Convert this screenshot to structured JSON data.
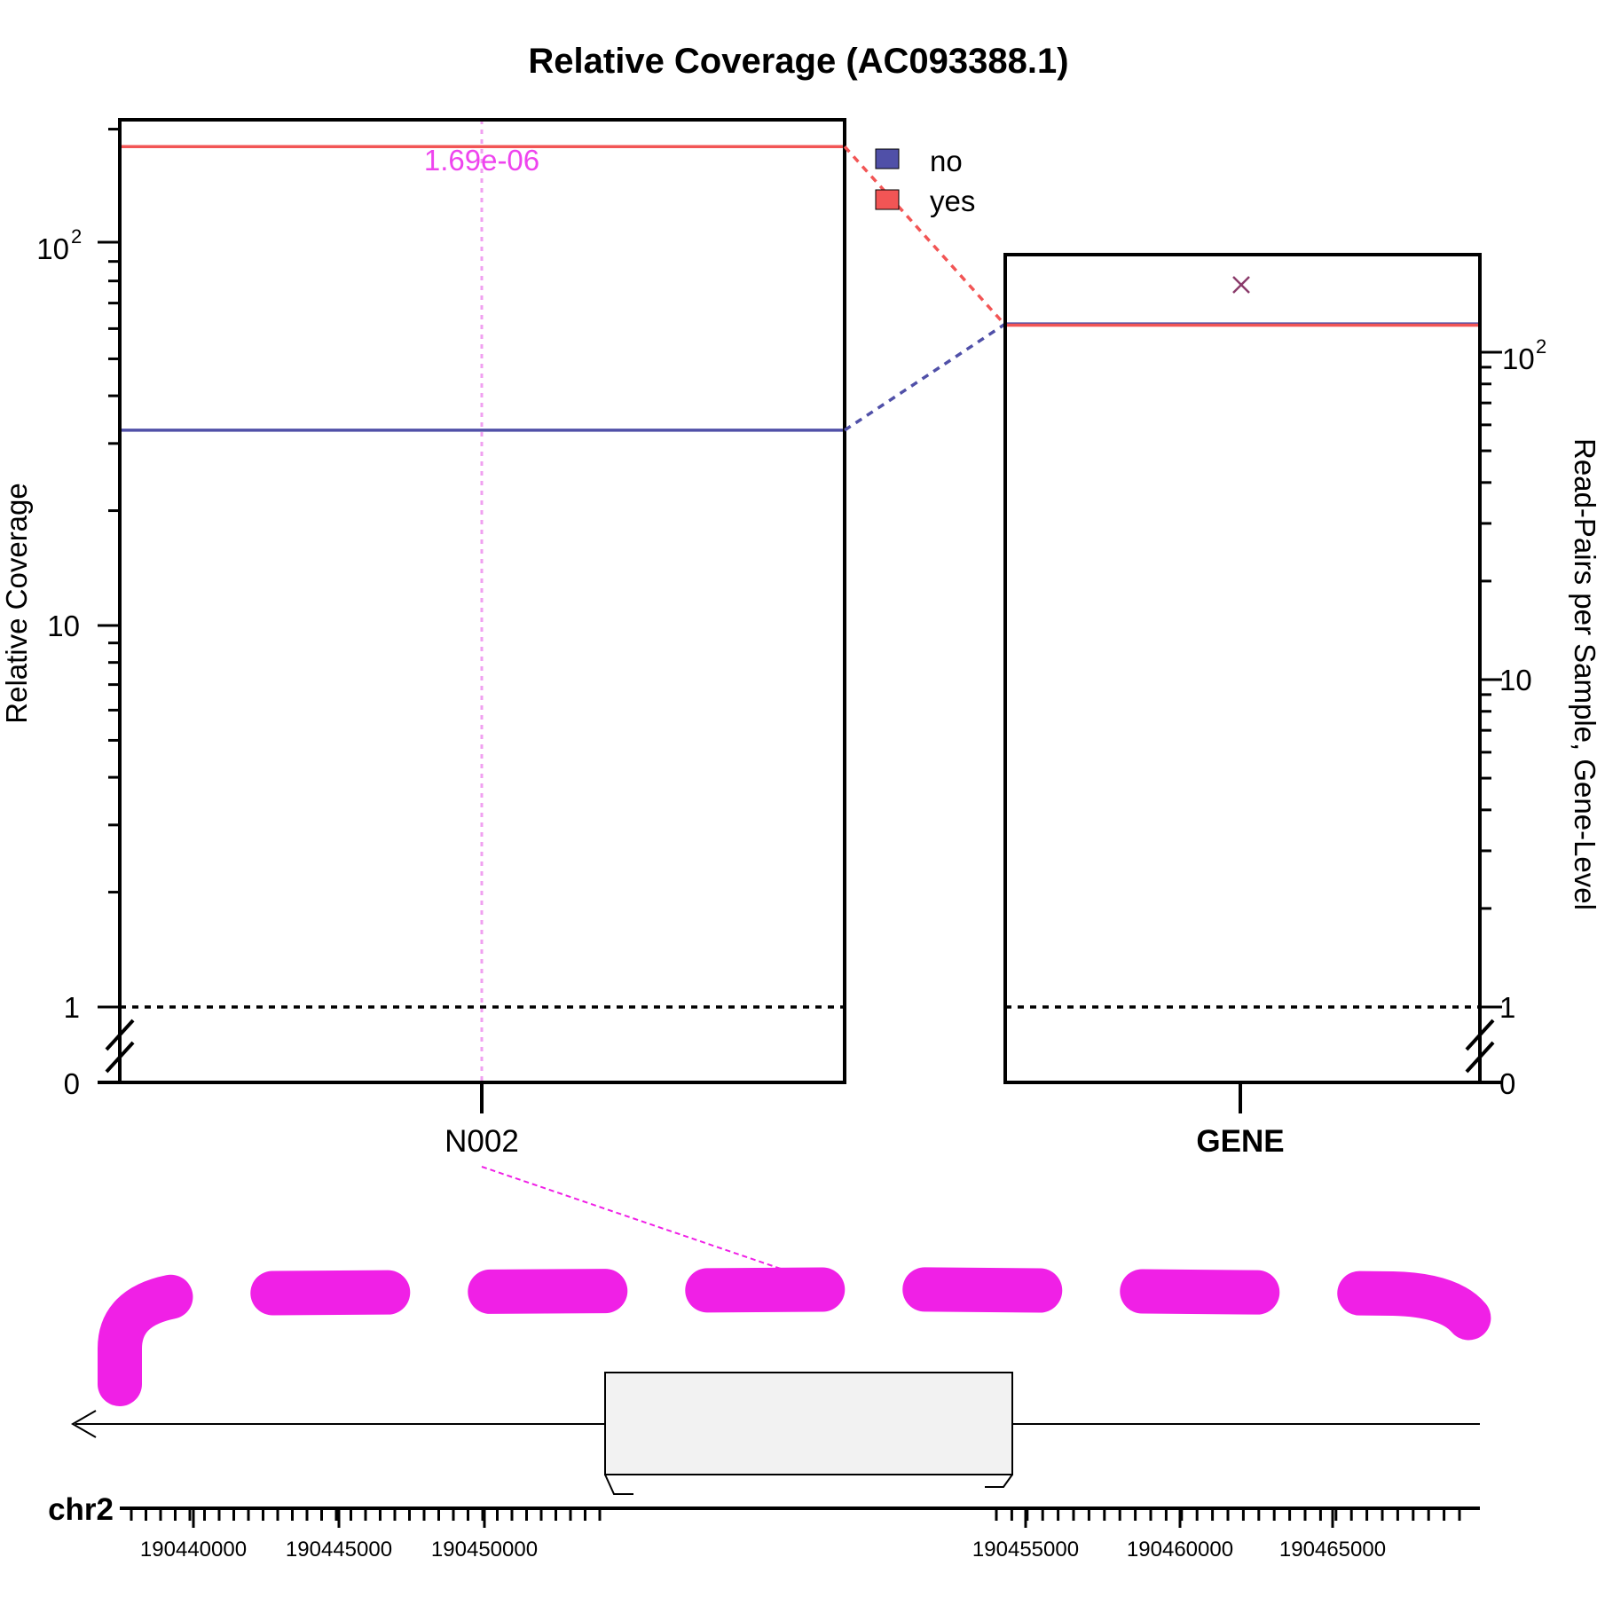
{
  "title": "Relative Coverage (AC093388.1)",
  "chart_data": {
    "type": "line",
    "title": "Relative Coverage (AC093388.1)",
    "left_panel": {
      "ylabel": "Relative Coverage",
      "yscale": "log (broken axis at 0)",
      "y_ticks": [
        "0",
        "1",
        "10",
        "10^2"
      ],
      "categories": [
        "N002"
      ],
      "series": [
        {
          "name": "no",
          "values": [
            32.5
          ]
        },
        {
          "name": "yes",
          "values": [
            180
          ]
        }
      ],
      "reference_line": 1,
      "annotation": {
        "category": "N002",
        "text": "1.69e-06"
      }
    },
    "right_panel": {
      "ylabel": "Read-Pairs per Sample, Gene-Level",
      "yscale": "log (broken axis at 0)",
      "y_ticks": [
        "0",
        "1",
        "10",
        "10^2"
      ],
      "categories": [
        "GENE"
      ],
      "series": [
        {
          "name": "no",
          "values": [
            122
          ]
        },
        {
          "name": "yes",
          "values": [
            121
          ]
        }
      ],
      "reference_line": 1
    },
    "legend": {
      "placement": "top-center",
      "entries": [
        {
          "name": "no",
          "color": "#5050a8"
        },
        {
          "name": "yes",
          "color": "#f25555"
        }
      ]
    },
    "genomic_track": {
      "chromosome": "chr2",
      "strand": "minus",
      "ticks": [
        "190440000",
        "190445000",
        "190450000",
        "190455000",
        "190460000",
        "190465000"
      ]
    }
  },
  "colors": {
    "no": "#5050a8",
    "yes": "#f25555",
    "pvalue": "#ee44ee",
    "pvalue_line": "#f0a0f0",
    "track": "#f020e6",
    "exon": "#f2f2f2"
  },
  "labels": {
    "ylabel_left": "Relative Coverage",
    "ylabel_right": "Read-Pairs per Sample, Gene-Level",
    "cat_left": "N002",
    "cat_right": "GENE",
    "pvalue": "1.69e-06",
    "legend_no": "no",
    "legend_yes": "yes",
    "chr": "chr2",
    "tick_0": "0",
    "tick_1": "1",
    "tick_10": "10",
    "tick_100_base": "10",
    "tick_100_exp": "2"
  }
}
